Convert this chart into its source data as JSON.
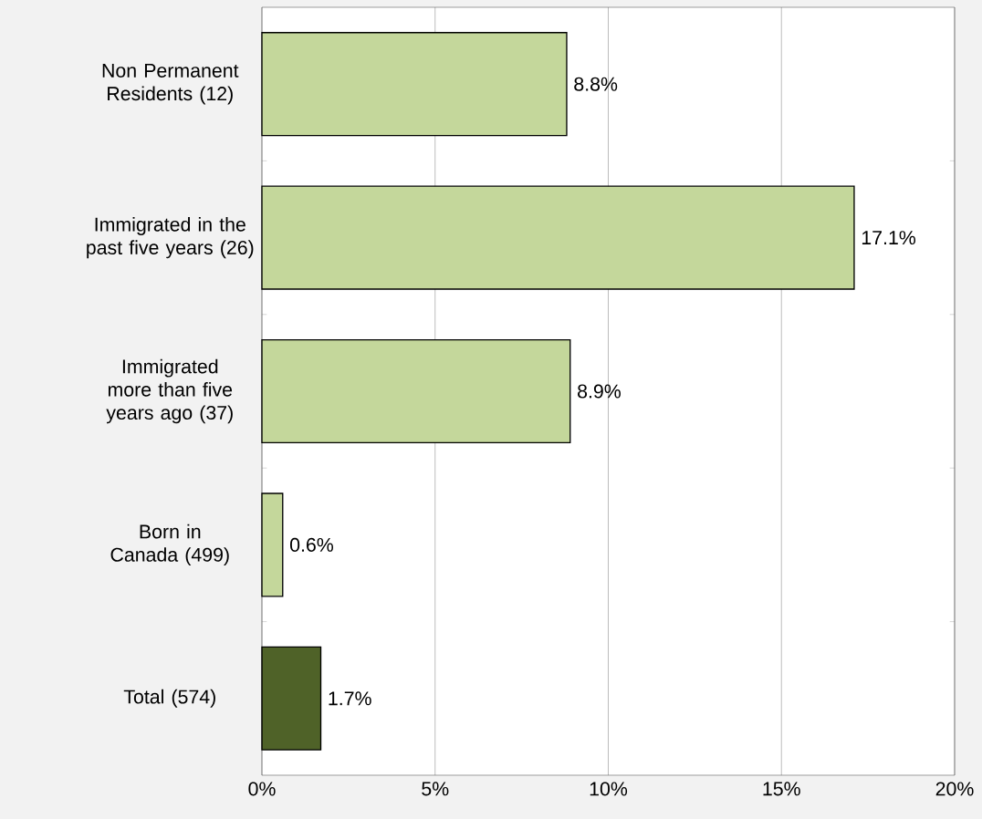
{
  "chart_data": {
    "type": "bar",
    "orientation": "horizontal",
    "categories": [
      "Non Permanent Residents (12)",
      "Immigrated in the past five years (26)",
      "Immigrated more than five years ago (37)",
      "Born in Canada (499)",
      "Total (574)"
    ],
    "values": [
      8.8,
      17.1,
      8.9,
      0.6,
      1.7
    ],
    "colors": [
      "#c4d79b",
      "#c4d79b",
      "#c4d79b",
      "#c4d79b",
      "#4f6228"
    ],
    "value_labels": [
      "8.8%",
      "17.1%",
      "8.9%",
      "0.6%",
      "1.7%"
    ],
    "xlim": [
      0,
      20
    ],
    "xticks": [
      {
        "value": 0,
        "label": "0%"
      },
      {
        "value": 5,
        "label": "5%"
      },
      {
        "value": 10,
        "label": "10%"
      },
      {
        "value": 15,
        "label": "15%"
      },
      {
        "value": 20,
        "label": "20%"
      }
    ],
    "grid": "x"
  }
}
